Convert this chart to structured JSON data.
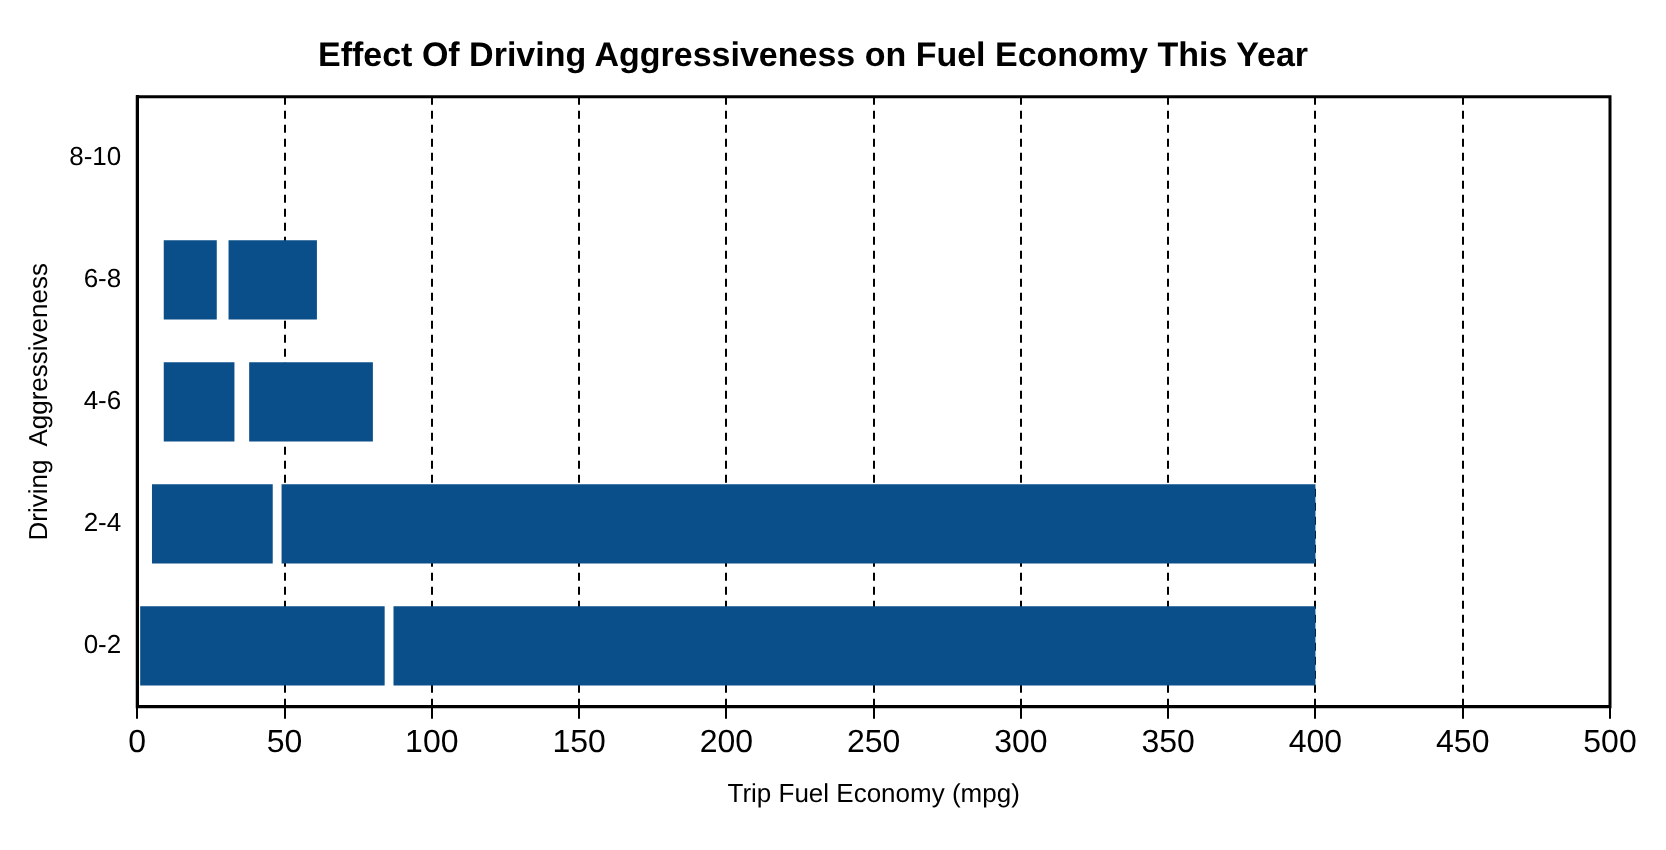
{
  "chart_data": {
    "type": "bar",
    "orientation": "horizontal",
    "title": "Effect Of Driving Aggressiveness on Fuel Economy This Year",
    "xlabel": "Trip Fuel Economy (mpg)",
    "ylabel": "Driving  Aggressiveness",
    "categories": [
      "8-10",
      "6-8",
      "4-6",
      "2-4",
      "0-2"
    ],
    "series": [
      {
        "color": "#0a4f8a",
        "base": [
          null,
          9,
          9,
          5,
          1
        ],
        "values": [
          null,
          18,
          24,
          41,
          83
        ]
      },
      {
        "color": "#0a4f8a",
        "base": [
          null,
          31,
          38,
          49,
          87
        ],
        "values": [
          null,
          30,
          42,
          351,
          313
        ]
      }
    ],
    "xlim": [
      0,
      500
    ],
    "xticks": [
      0,
      50,
      100,
      150,
      200,
      250,
      300,
      350,
      400,
      450,
      500
    ],
    "grid": "x",
    "legend": false
  }
}
